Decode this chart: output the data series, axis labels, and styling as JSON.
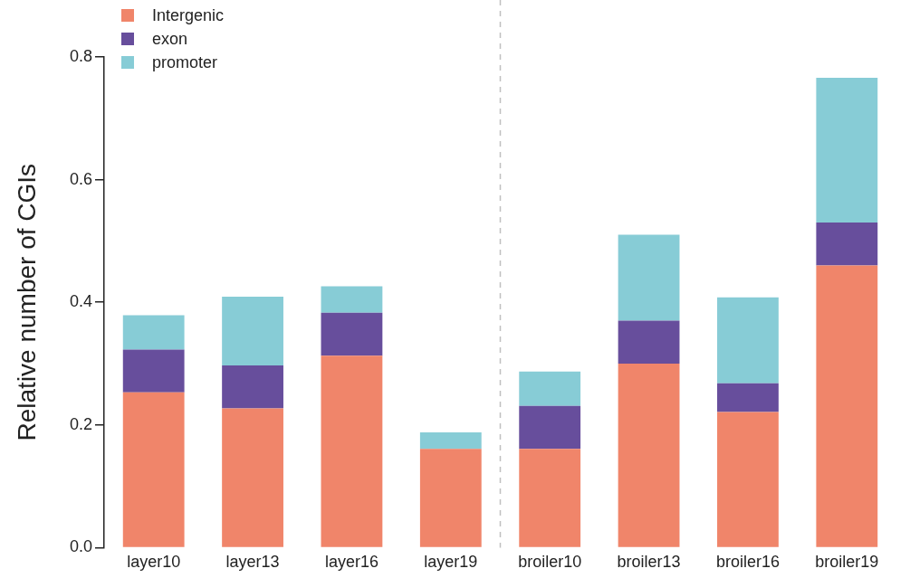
{
  "chart_data": {
    "type": "bar",
    "stacked": true,
    "ylabel": "Relative number of CGIs",
    "categories": [
      "layer10",
      "layer13",
      "layer16",
      "layer19",
      "broiler10",
      "broiler13",
      "broiler16",
      "broiler19"
    ],
    "series": [
      {
        "name": "Intergenic",
        "color": "#f0856a",
        "values": [
          0.253,
          0.227,
          0.313,
          0.161,
          0.161,
          0.3,
          0.221,
          0.46
        ]
      },
      {
        "name": "exon",
        "color": "#674e9c",
        "values": [
          0.07,
          0.07,
          0.07,
          0,
          0.07,
          0.07,
          0.047,
          0.07
        ]
      },
      {
        "name": "promoter",
        "color": "#87ccd6",
        "values": [
          0.056,
          0.112,
          0.043,
          0.027,
          0.056,
          0.14,
          0.14,
          0.236
        ]
      }
    ],
    "ylim": [
      0,
      0.8
    ],
    "yticks": [
      {
        "value": 0,
        "label": "0.0"
      },
      0.2,
      0.4,
      0.6,
      0.8
    ],
    "grid": false,
    "legend": "top left"
  }
}
